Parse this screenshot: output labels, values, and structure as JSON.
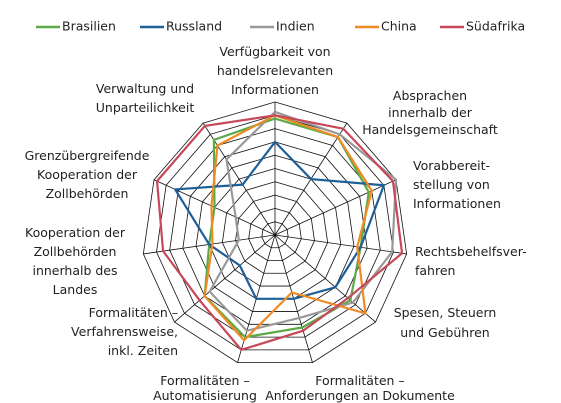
{
  "chart_data": {
    "type": "radar",
    "categories": [
      "Verfügbarkeit von\nhandelsrelevanten\nInformationen",
      "Absprachen\ninnerhalb der\nHandelsgemeinschaft",
      "Vorabbereit-\nstellung von\nInformationen",
      "Rechtsbehelfsver-\nfahren",
      "Spesen, Steuern\nund Gebühren",
      "Formalitäten –\nAnforderungen an Dokumente",
      "Formalitäten –\nAutomatisierung",
      "Formalitäten –\nVerfahrensweise,\ninkl. Zeiten",
      "Kooperation der\nZollbehörden\ninnerhalb des\nLandes",
      "Grenzübergreifende\nKooperation der\nZollbehörden",
      "Verwaltung und\nUnparteilichkeit"
    ],
    "series": [
      {
        "name": "Brasilien",
        "color": "#5aab46",
        "values": [
          1.75,
          1.75,
          1.55,
          1.3,
          1.5,
          1.45,
          1.6,
          1.4,
          1.0,
          1.0,
          1.7
        ]
      },
      {
        "name": "Russland",
        "color": "#1f5f99",
        "values": [
          1.4,
          1.0,
          1.8,
          1.3,
          1.2,
          1.0,
          1.0,
          0.7,
          1.0,
          1.65,
          0.9
        ]
      },
      {
        "name": "Indien",
        "color": "#999999",
        "values": [
          1.85,
          1.8,
          2.0,
          1.78,
          1.55,
          1.3,
          1.5,
          1.3,
          0.55,
          0.65,
          1.35
        ]
      },
      {
        "name": "China",
        "color": "#f08a24",
        "values": [
          1.8,
          1.75,
          1.6,
          1.25,
          1.8,
          0.9,
          1.65,
          1.4,
          0.95,
          1.05,
          1.6
        ]
      },
      {
        "name": "Südafrika",
        "color": "#c8485a",
        "values": [
          1.8,
          1.9,
          1.95,
          1.93,
          1.45,
          1.5,
          1.8,
          1.5,
          1.7,
          1.95,
          1.95
        ]
      }
    ],
    "ylim": [
      0,
      2
    ],
    "yticks": [
      0.2,
      0.4,
      0.6,
      0.8,
      1.0,
      1.2,
      1.4,
      1.6,
      1.8,
      2.0
    ],
    "grid": true,
    "legend": "top"
  }
}
